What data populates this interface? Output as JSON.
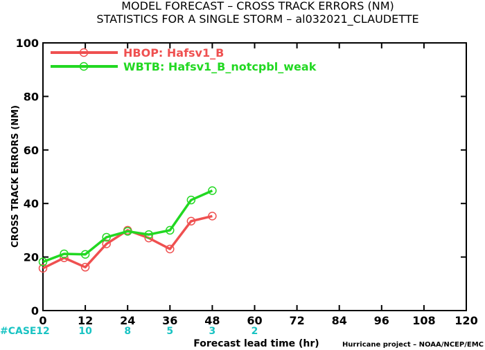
{
  "chart_data": {
    "type": "line",
    "title": "MODEL FORECAST – CROSS TRACK ERRORS (NM)",
    "subtitle": "STATISTICS FOR A SINGLE STORM – al032021_CLAUDETTE",
    "xlabel": "Forecast lead time (hr)",
    "ylabel": "CROSS TRACK ERRORS (NM)",
    "xlim": [
      0,
      120
    ],
    "ylim": [
      0,
      100
    ],
    "xticks": [
      "0",
      "12",
      "24",
      "36",
      "48",
      "60",
      "72",
      "84",
      "96",
      "108",
      "120"
    ],
    "yticks": [
      "0",
      "20",
      "40",
      "60",
      "80",
      "100"
    ],
    "grid": false,
    "legend_position": "top-left",
    "series": [
      {
        "name": "HBOP: Hafsv1_B",
        "color": "#ef5050",
        "x": [
          0,
          6,
          12,
          18,
          24,
          30,
          36,
          42,
          48
        ],
        "y": [
          15.8,
          19.7,
          16.2,
          24.9,
          30.0,
          27.1,
          23.0,
          33.4,
          35.3
        ]
      },
      {
        "name": "WBTB: Hafsv1_B_notcpbl_weak",
        "color": "#22d822",
        "x": [
          0,
          6,
          12,
          18,
          24,
          30,
          36,
          42,
          48
        ],
        "y": [
          18.2,
          21.2,
          21.0,
          27.4,
          29.6,
          28.4,
          30.0,
          41.3,
          44.8
        ]
      }
    ],
    "cases_label": "#CASE",
    "cases": [
      {
        "x": 0,
        "label": "12"
      },
      {
        "x": 12,
        "label": "10"
      },
      {
        "x": 24,
        "label": "8"
      },
      {
        "x": 36,
        "label": "5"
      },
      {
        "x": 48,
        "label": "3"
      },
      {
        "x": 60,
        "label": "2"
      }
    ],
    "credit": "Hurricane project – NOAA/NCEP/EMC"
  }
}
